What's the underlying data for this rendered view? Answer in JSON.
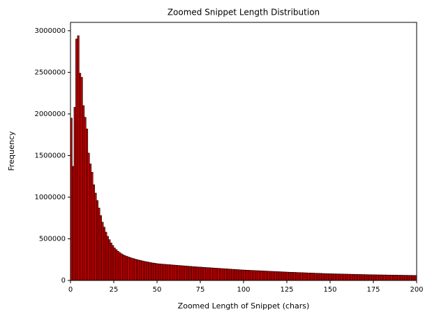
{
  "chart_data": {
    "type": "histogram",
    "title": "Zoomed Snippet Length Distribution",
    "xlabel": "Zoomed Length of Snippet (chars)",
    "ylabel": "Frequency",
    "bins": [
      0,
      1,
      2,
      3,
      4,
      5,
      6,
      7,
      8,
      9,
      10,
      11,
      12,
      13,
      14,
      15,
      16,
      17,
      18,
      19,
      20,
      21,
      22,
      23,
      24,
      25,
      26,
      27,
      28,
      29,
      30,
      31,
      32,
      33,
      34,
      35,
      36,
      37,
      38,
      39,
      40,
      41,
      42,
      43,
      44,
      45,
      46,
      47,
      48,
      49,
      50,
      51,
      52,
      53,
      54,
      55,
      56,
      57,
      58,
      59,
      60,
      61,
      62,
      63,
      64,
      65,
      66,
      67,
      68,
      69,
      70,
      71,
      72,
      73,
      74,
      75,
      76,
      77,
      78,
      79,
      80,
      81,
      82,
      83,
      84,
      85,
      86,
      87,
      88,
      89,
      90,
      91,
      92,
      93,
      94,
      95,
      96,
      97,
      98,
      99,
      100,
      101,
      102,
      103,
      104,
      105,
      106,
      107,
      108,
      109,
      110,
      111,
      112,
      113,
      114,
      115,
      116,
      117,
      118,
      119,
      120,
      121,
      122,
      123,
      124,
      125,
      126,
      127,
      128,
      129,
      130,
      131,
      132,
      133,
      134,
      135,
      136,
      137,
      138,
      139,
      140,
      141,
      142,
      143,
      144,
      145,
      146,
      147,
      148,
      149,
      150,
      151,
      152,
      153,
      154,
      155,
      156,
      157,
      158,
      159,
      160,
      161,
      162,
      163,
      164,
      165,
      166,
      167,
      168,
      169,
      170,
      171,
      172,
      173,
      174,
      175,
      176,
      177,
      178,
      179,
      180,
      181,
      182,
      183,
      184,
      185,
      186,
      187,
      188,
      189,
      190,
      191,
      192,
      193,
      194,
      195,
      196,
      197,
      198,
      199,
      200
    ],
    "counts": [
      1950000,
      1370000,
      2080000,
      2900000,
      2940000,
      2490000,
      2440000,
      2100000,
      1960000,
      1820000,
      1530000,
      1400000,
      1300000,
      1150000,
      1050000,
      960000,
      870000,
      780000,
      700000,
      640000,
      580000,
      530000,
      490000,
      450000,
      420000,
      390000,
      370000,
      350000,
      335000,
      320000,
      308000,
      298000,
      290000,
      282000,
      275000,
      268000,
      262000,
      256000,
      250000,
      245000,
      240000,
      235000,
      230000,
      226000,
      222000,
      218000,
      214000,
      210000,
      207000,
      204000,
      201000,
      199000,
      197000,
      195000,
      194000,
      192000,
      190000,
      189000,
      187000,
      185000,
      184000,
      182000,
      180000,
      179000,
      177000,
      175000,
      174000,
      172000,
      170000,
      169000,
      167000,
      165000,
      164000,
      162000,
      161000,
      160000,
      158000,
      157000,
      155000,
      154000,
      153000,
      151000,
      150000,
      148000,
      147000,
      146000,
      144000,
      143000,
      141000,
      140000,
      139000,
      137000,
      136000,
      134000,
      133000,
      132000,
      130000,
      129000,
      127000,
      126000,
      125000,
      124000,
      123000,
      122000,
      121000,
      120000,
      119000,
      118000,
      117000,
      116000,
      115000,
      114000,
      113000,
      112000,
      111000,
      110000,
      109000,
      108000,
      107000,
      106000,
      105000,
      104000,
      103000,
      102000,
      101000,
      100000,
      99000,
      98000,
      98000,
      97000,
      96000,
      95000,
      94000,
      94000,
      93000,
      92000,
      91000,
      90000,
      90000,
      89000,
      88000,
      87000,
      86000,
      86000,
      85000,
      84000,
      83000,
      82000,
      82000,
      81000,
      80000,
      80000,
      79000,
      79000,
      78000,
      78000,
      77000,
      77000,
      76000,
      76000,
      75000,
      75000,
      74000,
      74000,
      73000,
      73000,
      72000,
      72000,
      71000,
      71000,
      70000,
      70000,
      69000,
      69000,
      68000,
      68000,
      68000,
      67000,
      67000,
      67000,
      66000,
      66000,
      66000,
      65000,
      65000,
      65000,
      64000,
      64000,
      64000,
      63000,
      63000,
      63000,
      62000,
      62000,
      62000,
      61000,
      61000,
      61000,
      60000,
      60000
    ],
    "color": "#c80000",
    "edgecolor": "#000000",
    "xlim": [
      0,
      200
    ],
    "xticks": [
      0,
      25,
      50,
      75,
      100,
      125,
      150,
      175,
      200
    ],
    "ylim": [
      0,
      3100000
    ],
    "yticks": [
      0,
      500000,
      1000000,
      1500000,
      2000000,
      2500000,
      3000000
    ]
  }
}
